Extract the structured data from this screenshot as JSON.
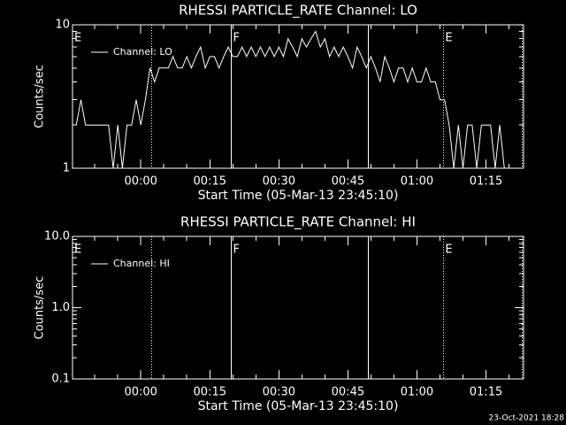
{
  "chart_data": [
    {
      "type": "line",
      "title": "RHESSI PARTICLE_RATE Channel: LO",
      "xlabel": "Start Time (05-Mar-13 23:45:10)",
      "ylabel": "Counts/sec",
      "log_y": true,
      "ylim": [
        1,
        10
      ],
      "yticks": [
        1,
        10
      ],
      "xlim": [
        "23:45:10",
        "01:23:10"
      ],
      "xticks": [
        "00:00",
        "00:15",
        "00:30",
        "00:45",
        "01:00",
        "01:15"
      ],
      "legend": "upper left",
      "vlines": [
        {
          "x": "00:02:20",
          "style": "dotted"
        },
        {
          "x": "00:19:40",
          "style": "solid"
        },
        {
          "x": "00:49:25",
          "style": "solid"
        },
        {
          "x": "01:05:45",
          "style": "dotted"
        },
        {
          "x": "01:22:50",
          "style": "dotted"
        }
      ],
      "annotations": [
        {
          "text": "E",
          "x": "23:45:10"
        },
        {
          "text": "F",
          "x": "00:19:40"
        },
        {
          "text": "E",
          "x": "01:05:45"
        }
      ],
      "x": [
        "23:46",
        "23:47",
        "23:48",
        "23:49",
        "23:50",
        "23:51",
        "23:52",
        "23:53",
        "23:54",
        "23:55",
        "23:56",
        "23:57",
        "23:58",
        "23:59",
        "00:00",
        "00:01",
        "00:02",
        "00:03",
        "00:04",
        "00:05",
        "00:06",
        "00:07",
        "00:08",
        "00:09",
        "00:10",
        "00:11",
        "00:12",
        "00:13",
        "00:14",
        "00:15",
        "00:16",
        "00:17",
        "00:18",
        "00:19",
        "00:20",
        "00:21",
        "00:22",
        "00:23",
        "00:24",
        "00:25",
        "00:26",
        "00:27",
        "00:28",
        "00:29",
        "00:30",
        "00:31",
        "00:32",
        "00:33",
        "00:34",
        "00:35",
        "00:36",
        "00:37",
        "00:38",
        "00:39",
        "00:40",
        "00:41",
        "00:42",
        "00:43",
        "00:44",
        "00:45",
        "00:46",
        "00:47",
        "00:48",
        "00:49",
        "00:50",
        "00:51",
        "00:52",
        "00:53",
        "00:54",
        "00:55",
        "00:56",
        "00:57",
        "00:58",
        "00:59",
        "01:00",
        "01:01",
        "01:02",
        "01:03",
        "01:04",
        "01:05",
        "01:06",
        "01:07",
        "01:08",
        "01:09",
        "01:10",
        "01:11",
        "01:12",
        "01:13",
        "01:14",
        "01:15",
        "01:16",
        "01:17",
        "01:18",
        "01:19",
        "01:20"
      ],
      "series": [
        {
          "name": "Channel: LO",
          "color": "#ffffff",
          "values": [
            2,
            3,
            2,
            2,
            2,
            2,
            2,
            2,
            1,
            2,
            1,
            2,
            2,
            3,
            2,
            3,
            5,
            4,
            5,
            5,
            5,
            6,
            5,
            5,
            6,
            5,
            6,
            7,
            5,
            6,
            6,
            5,
            6,
            7,
            6,
            6,
            7,
            6,
            7,
            6,
            7,
            6,
            7,
            6,
            7,
            6,
            8,
            7,
            6,
            8,
            7,
            8,
            9,
            7,
            8,
            6,
            7,
            6,
            7,
            6,
            5,
            7,
            6,
            5,
            6,
            5,
            4,
            6,
            5,
            4,
            5,
            5,
            4,
            5,
            4,
            4,
            5,
            4,
            4,
            3,
            3,
            2,
            1,
            2,
            1,
            2,
            2,
            1,
            2,
            2,
            2,
            1,
            2,
            1,
            1
          ]
        }
      ]
    },
    {
      "type": "line",
      "title": "RHESSI PARTICLE_RATE Channel: HI",
      "xlabel": "Start Time (05-Mar-13 23:45:10)",
      "ylabel": "Counts/sec",
      "log_y": true,
      "ylim": [
        0.1,
        10
      ],
      "yticks": [
        0.1,
        {
          "value": 1,
          "label": "1.0"
        },
        {
          "value": 10,
          "label": "10.0"
        }
      ],
      "xlim": [
        "23:45:10",
        "01:23:10"
      ],
      "xticks": [
        "00:00",
        "00:15",
        "00:30",
        "00:45",
        "01:00",
        "01:15"
      ],
      "legend": "upper left",
      "vlines": [
        {
          "x": "00:02:20",
          "style": "dotted"
        },
        {
          "x": "00:19:40",
          "style": "solid"
        },
        {
          "x": "00:49:25",
          "style": "solid"
        },
        {
          "x": "01:05:45",
          "style": "dotted"
        },
        {
          "x": "01:22:50",
          "style": "dotted"
        }
      ],
      "annotations": [
        {
          "text": "E",
          "x": "23:45:10"
        },
        {
          "text": "F",
          "x": "00:19:40"
        },
        {
          "text": "E",
          "x": "01:05:45"
        }
      ],
      "x": [],
      "series": [
        {
          "name": "Channel: HI",
          "color": "#ffffff",
          "values": []
        }
      ]
    }
  ],
  "footer": "23-Oct-2021 18:28"
}
